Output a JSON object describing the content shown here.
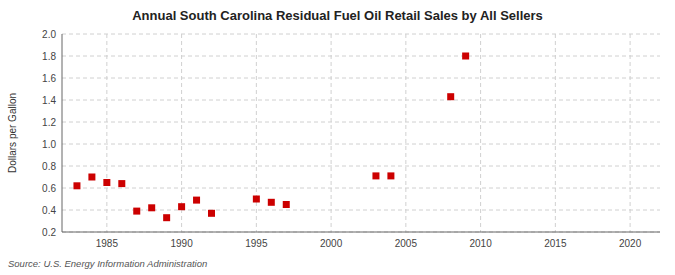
{
  "chart_data": {
    "type": "scatter",
    "title": "Annual South Carolina Residual Fuel Oil Retail Sales by All Sellers",
    "y_label": "Dollars per Gallon",
    "annotation": "Source: U.S. Energy Information Administration",
    "x": [
      1983,
      1984,
      1985,
      1986,
      1987,
      1988,
      1989,
      1990,
      1991,
      1992,
      1995,
      1996,
      1997,
      2003,
      2004,
      2008,
      2009
    ],
    "values": [
      0.62,
      0.7,
      0.65,
      0.64,
      0.39,
      0.42,
      0.33,
      0.43,
      0.49,
      0.37,
      0.5,
      0.47,
      0.45,
      0.71,
      0.71,
      1.43,
      1.8
    ],
    "color": "#cc0000",
    "marker": "square",
    "xlim": [
      1982,
      2022
    ],
    "ylim": [
      0.2,
      2.0
    ],
    "xticks": [
      1985,
      1990,
      1995,
      2000,
      2005,
      2010,
      2015,
      2020
    ],
    "yticks": [
      0.2,
      0.4,
      0.6,
      0.8,
      {
        "value": 1,
        "label": "1.0"
      },
      1.2,
      1.4,
      1.6,
      1.8,
      {
        "value": 2,
        "label": "2.0"
      }
    ],
    "grid": true
  }
}
